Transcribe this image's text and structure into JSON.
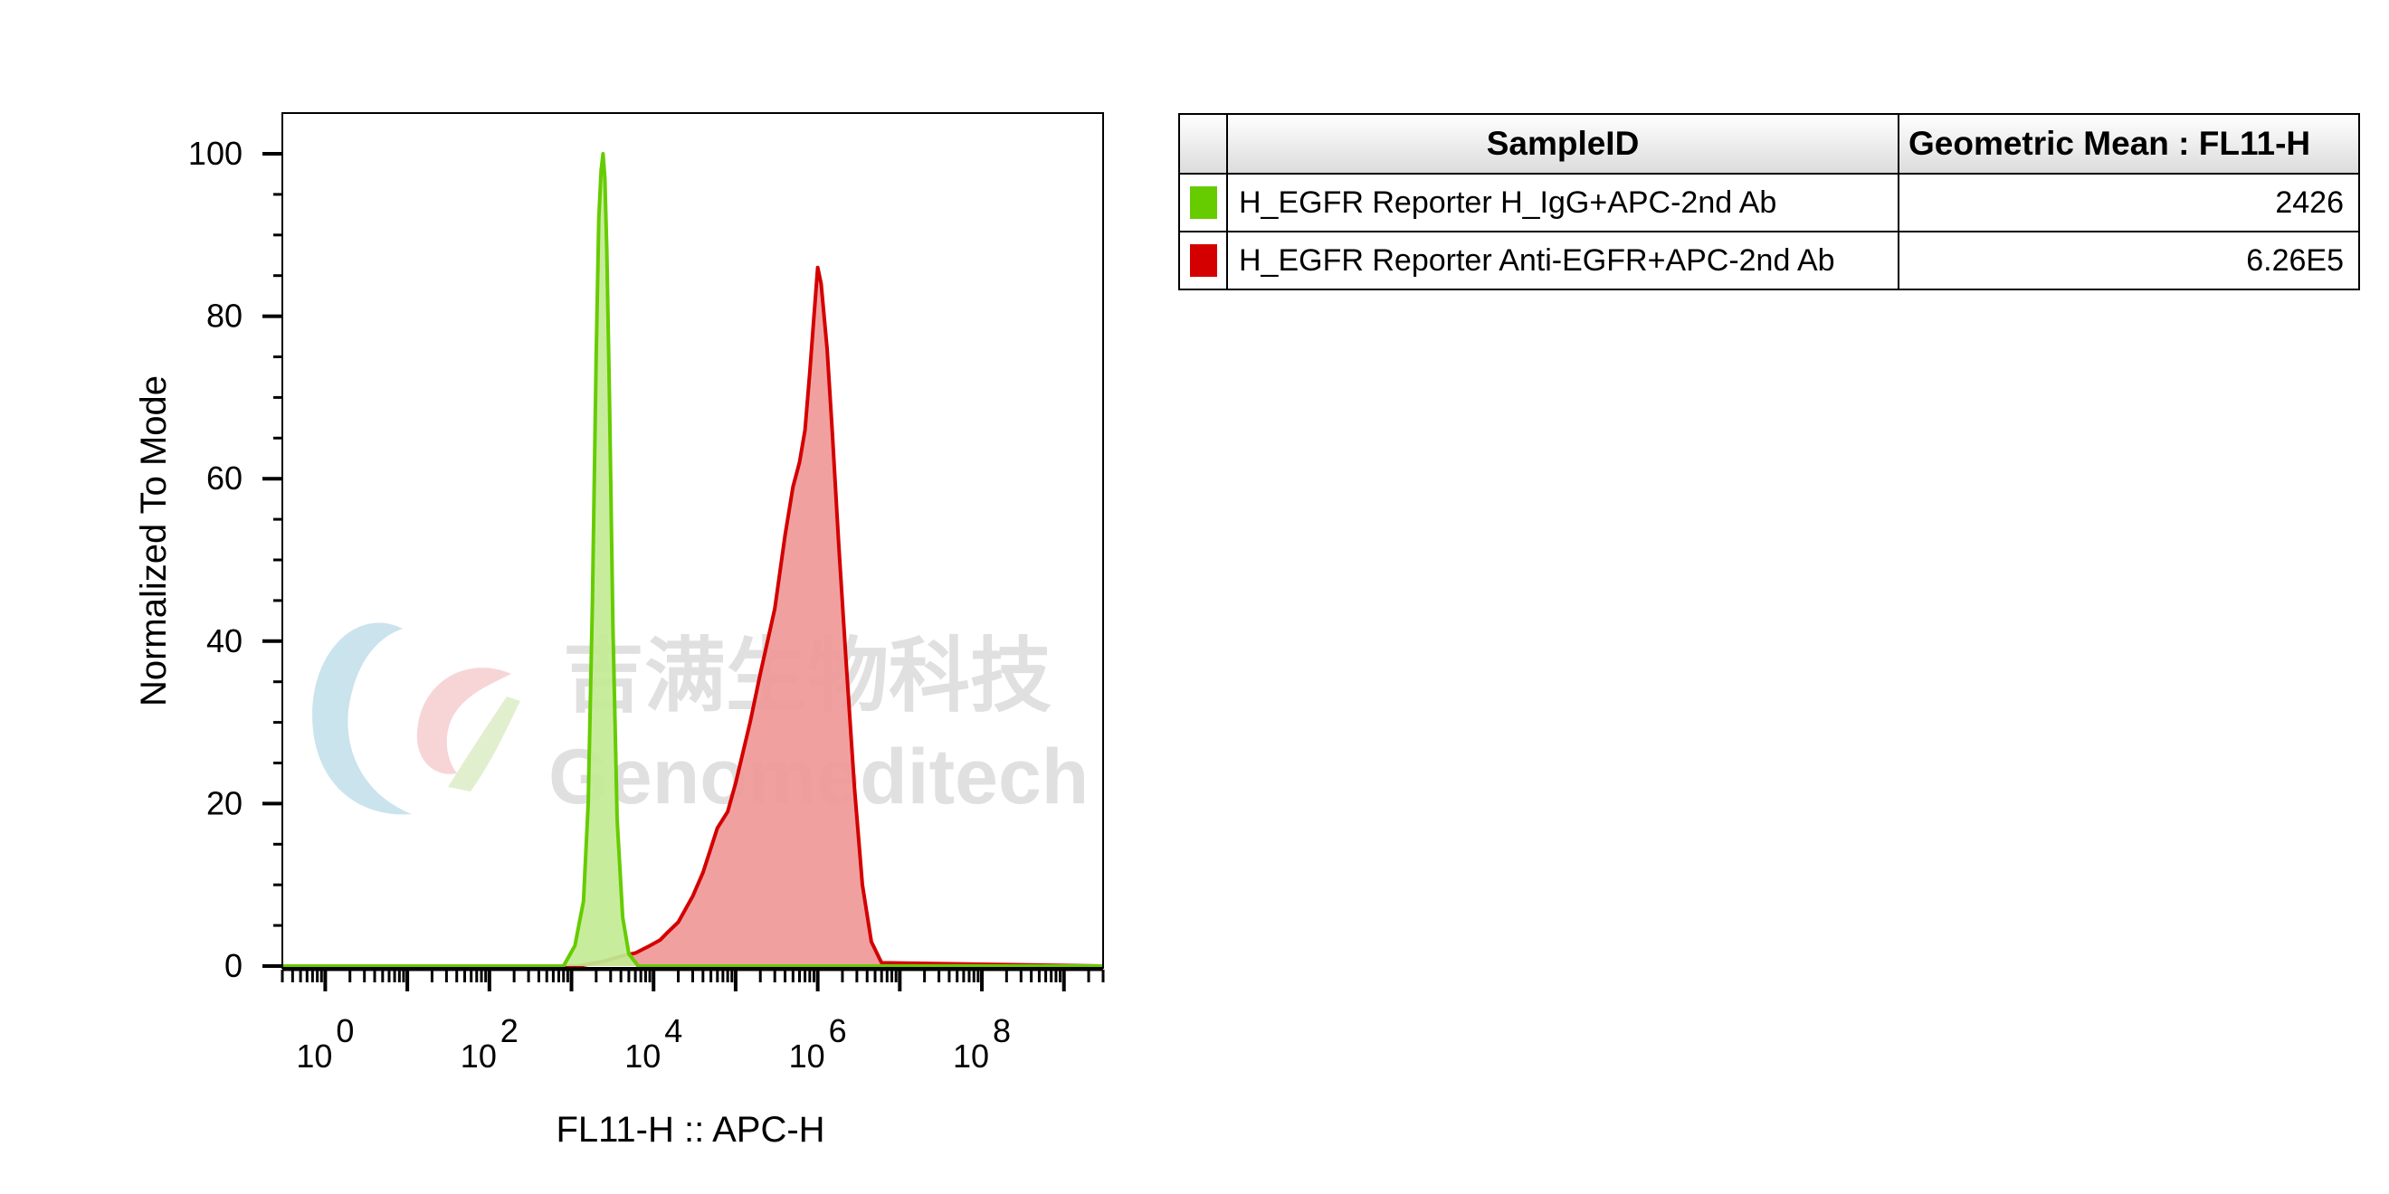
{
  "chart_data": {
    "type": "area",
    "title": "",
    "xlabel": "FL11-H :: APC-H",
    "ylabel": "Normalized To Mode",
    "x_scale": "log",
    "xlim": [
      0.3,
      3000000000
    ],
    "ylim": [
      0,
      100
    ],
    "yticks": [
      0,
      20,
      40,
      60,
      80,
      100
    ],
    "xticks": [
      {
        "base": "10",
        "exp": "0"
      },
      {
        "base": "10",
        "exp": "2"
      },
      {
        "base": "10",
        "exp": "4"
      },
      {
        "base": "10",
        "exp": "6"
      },
      {
        "base": "10",
        "exp": "8"
      }
    ],
    "grid": false,
    "series": [
      {
        "name": "H_EGFR Reporter Anti-EGFR+APC-2nd Ab",
        "color": "#d40000",
        "fill": "#f09898",
        "x": [
          0.3,
          1200,
          2500,
          4000,
          6000,
          9000,
          12000,
          15000,
          20000,
          30000,
          40000,
          60000,
          80000,
          100000,
          150000,
          200000,
          300000,
          400000,
          500000,
          600000,
          700000,
          800000,
          900000,
          1000000,
          1100000,
          1300000,
          1500000,
          1800000,
          2200000,
          2800000,
          3500000,
          4500000,
          6000000,
          3000000000
        ],
        "values": [
          0,
          0,
          0.6,
          1.2,
          1.6,
          2.5,
          3.2,
          4.2,
          5.4,
          8.6,
          11.5,
          17,
          19,
          22.5,
          30,
          36,
          44,
          53,
          59,
          62,
          66,
          73,
          80,
          86,
          84,
          76,
          66,
          52,
          38,
          22,
          10,
          3,
          0.4,
          0
        ]
      },
      {
        "name": "H_EGFR Reporter H_IgG+APC-2nd Ab",
        "color": "#66cc00",
        "fill": "#c2ec94",
        "x": [
          0.3,
          800,
          1100,
          1400,
          1600,
          1800,
          2000,
          2150,
          2300,
          2426,
          2550,
          2700,
          2900,
          3200,
          3600,
          4200,
          5000,
          6500,
          3000000000
        ],
        "values": [
          0,
          0,
          2.5,
          8,
          20,
          45,
          75,
          92,
          98,
          100,
          97,
          88,
          70,
          42,
          18,
          6,
          1.5,
          0,
          0
        ]
      }
    ]
  },
  "legend": {
    "header_sample": "SampleID",
    "header_mean": "Geometric Mean : FL11-H",
    "rows": [
      {
        "swatch_color": "#66cc00",
        "sample": "H_EGFR Reporter H_IgG+APC-2nd Ab",
        "mean": "2426"
      },
      {
        "swatch_color": "#d40000",
        "sample": "H_EGFR Reporter Anti-EGFR+APC-2nd Ab",
        "mean": "6.26E5"
      }
    ]
  },
  "watermark": {
    "chinese": "吉满生物科技",
    "english": "Genomeditech"
  }
}
